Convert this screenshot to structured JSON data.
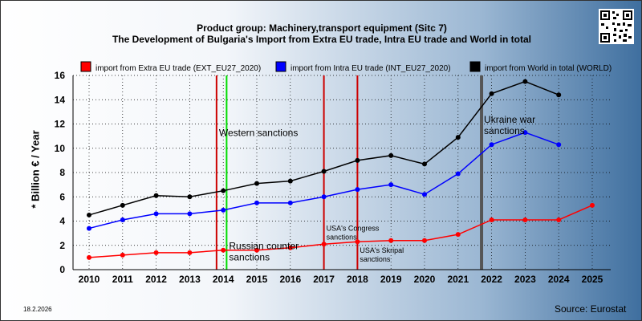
{
  "titles": {
    "line1": "Product group: Machinery,transport equipment (Sitc 7)",
    "line2": "The Development of Bulgaria's Import from Extra EU trade, Intra EU trade and World in total"
  },
  "footer": {
    "date": "18.2.2026",
    "source": "Source: Eurostat"
  },
  "colors": {
    "extra": "#ff0000",
    "intra": "#0000ff",
    "world": "#000000",
    "grid": "#000000"
  },
  "chart_data": {
    "type": "line",
    "title": "The Development of Bulgaria's Import from Extra EU trade, Intra EU trade and World in total",
    "xlabel": "",
    "ylabel": "* Billion € / Year",
    "ylim": [
      0,
      16
    ],
    "yticks": [
      "0",
      "2",
      "4",
      "6",
      "8",
      "10",
      "12",
      "14",
      "16"
    ],
    "categories": [
      "2010",
      "2011",
      "2012",
      "2013",
      "2014",
      "2015",
      "2016",
      "2017",
      "2018",
      "2019",
      "2020",
      "2021",
      "2022",
      "2023",
      "2024",
      "2025"
    ],
    "grid": true,
    "legend_position": "top",
    "series": [
      {
        "name": "import from Extra EU trade (EXT_EU27_2020)",
        "color": "#ff0000",
        "values": [
          1.0,
          1.2,
          1.4,
          1.4,
          1.6,
          1.6,
          1.8,
          2.1,
          2.3,
          2.4,
          2.4,
          2.9,
          4.1,
          4.1,
          4.1,
          5.3
        ]
      },
      {
        "name": "import from Intra EU trade (INT_EU27_2020)",
        "color": "#0000ff",
        "values": [
          3.4,
          4.1,
          4.6,
          4.6,
          4.9,
          5.5,
          5.5,
          6.0,
          6.6,
          7.0,
          6.2,
          7.9,
          10.3,
          11.3,
          10.3,
          null
        ]
      },
      {
        "name": "import from World in total (WORLD)",
        "color": "#000000",
        "values": [
          4.5,
          5.3,
          6.1,
          6.0,
          6.5,
          7.1,
          7.3,
          8.1,
          9.0,
          9.4,
          8.7,
          10.9,
          14.5,
          15.5,
          14.4,
          null
        ]
      }
    ],
    "annotations": [
      {
        "id": "western-sanctions",
        "x": 2013.8,
        "color": "#cc0000",
        "label": "Western sanctions",
        "label_y": 11.0
      },
      {
        "id": "russian-counter-sanctions",
        "x": 2014.1,
        "color": "#00dd00",
        "label": "Russian counter\nsanctions",
        "label_y": 1.7
      },
      {
        "id": "usa-congress-sanctions",
        "x": 2017.0,
        "color": "#cc0000",
        "label": "USA's Congress\nsanctions",
        "label_y": 3.2
      },
      {
        "id": "usa-skripal-sanctions",
        "x": 2018.0,
        "color": "#cc0000",
        "label": "USA's Skripal\nsanctions",
        "label_y": 1.4
      },
      {
        "id": "ukraine-war-sanctions",
        "x": 2021.7,
        "color": "#555555",
        "label": "Ukraine war\nsanctions",
        "label_y": 12.1
      }
    ]
  }
}
